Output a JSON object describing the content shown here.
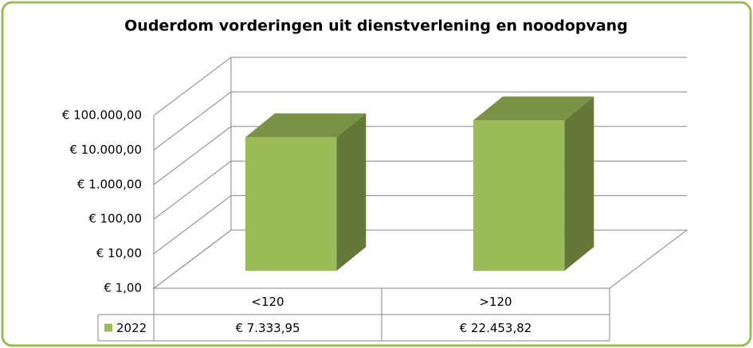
{
  "chart_data": {
    "type": "bar3d",
    "title": "Ouderdom vorderingen uit dienstverlening en noodopvang",
    "categories": [
      "<120",
      ">120"
    ],
    "series": [
      {
        "name": "2022",
        "color": "#9bbb59",
        "values": [
          7333.95,
          22453.82
        ],
        "value_labels": [
          "€ 7.333,95",
          "€ 22.453,82"
        ]
      }
    ],
    "log_scale": true,
    "ylim": [
      1,
      100000
    ],
    "yticks": [
      {
        "value": 1,
        "label": "€ 1,00"
      },
      {
        "value": 10,
        "label": "€ 10,00"
      },
      {
        "value": 100,
        "label": "€ 100,00"
      },
      {
        "value": 1000,
        "label": "€ 1.000,00"
      },
      {
        "value": 10000,
        "label": "€ 10.000,00"
      },
      {
        "value": 100000,
        "label": "€ 100.000,00"
      }
    ],
    "grid": true,
    "data_table": true
  }
}
